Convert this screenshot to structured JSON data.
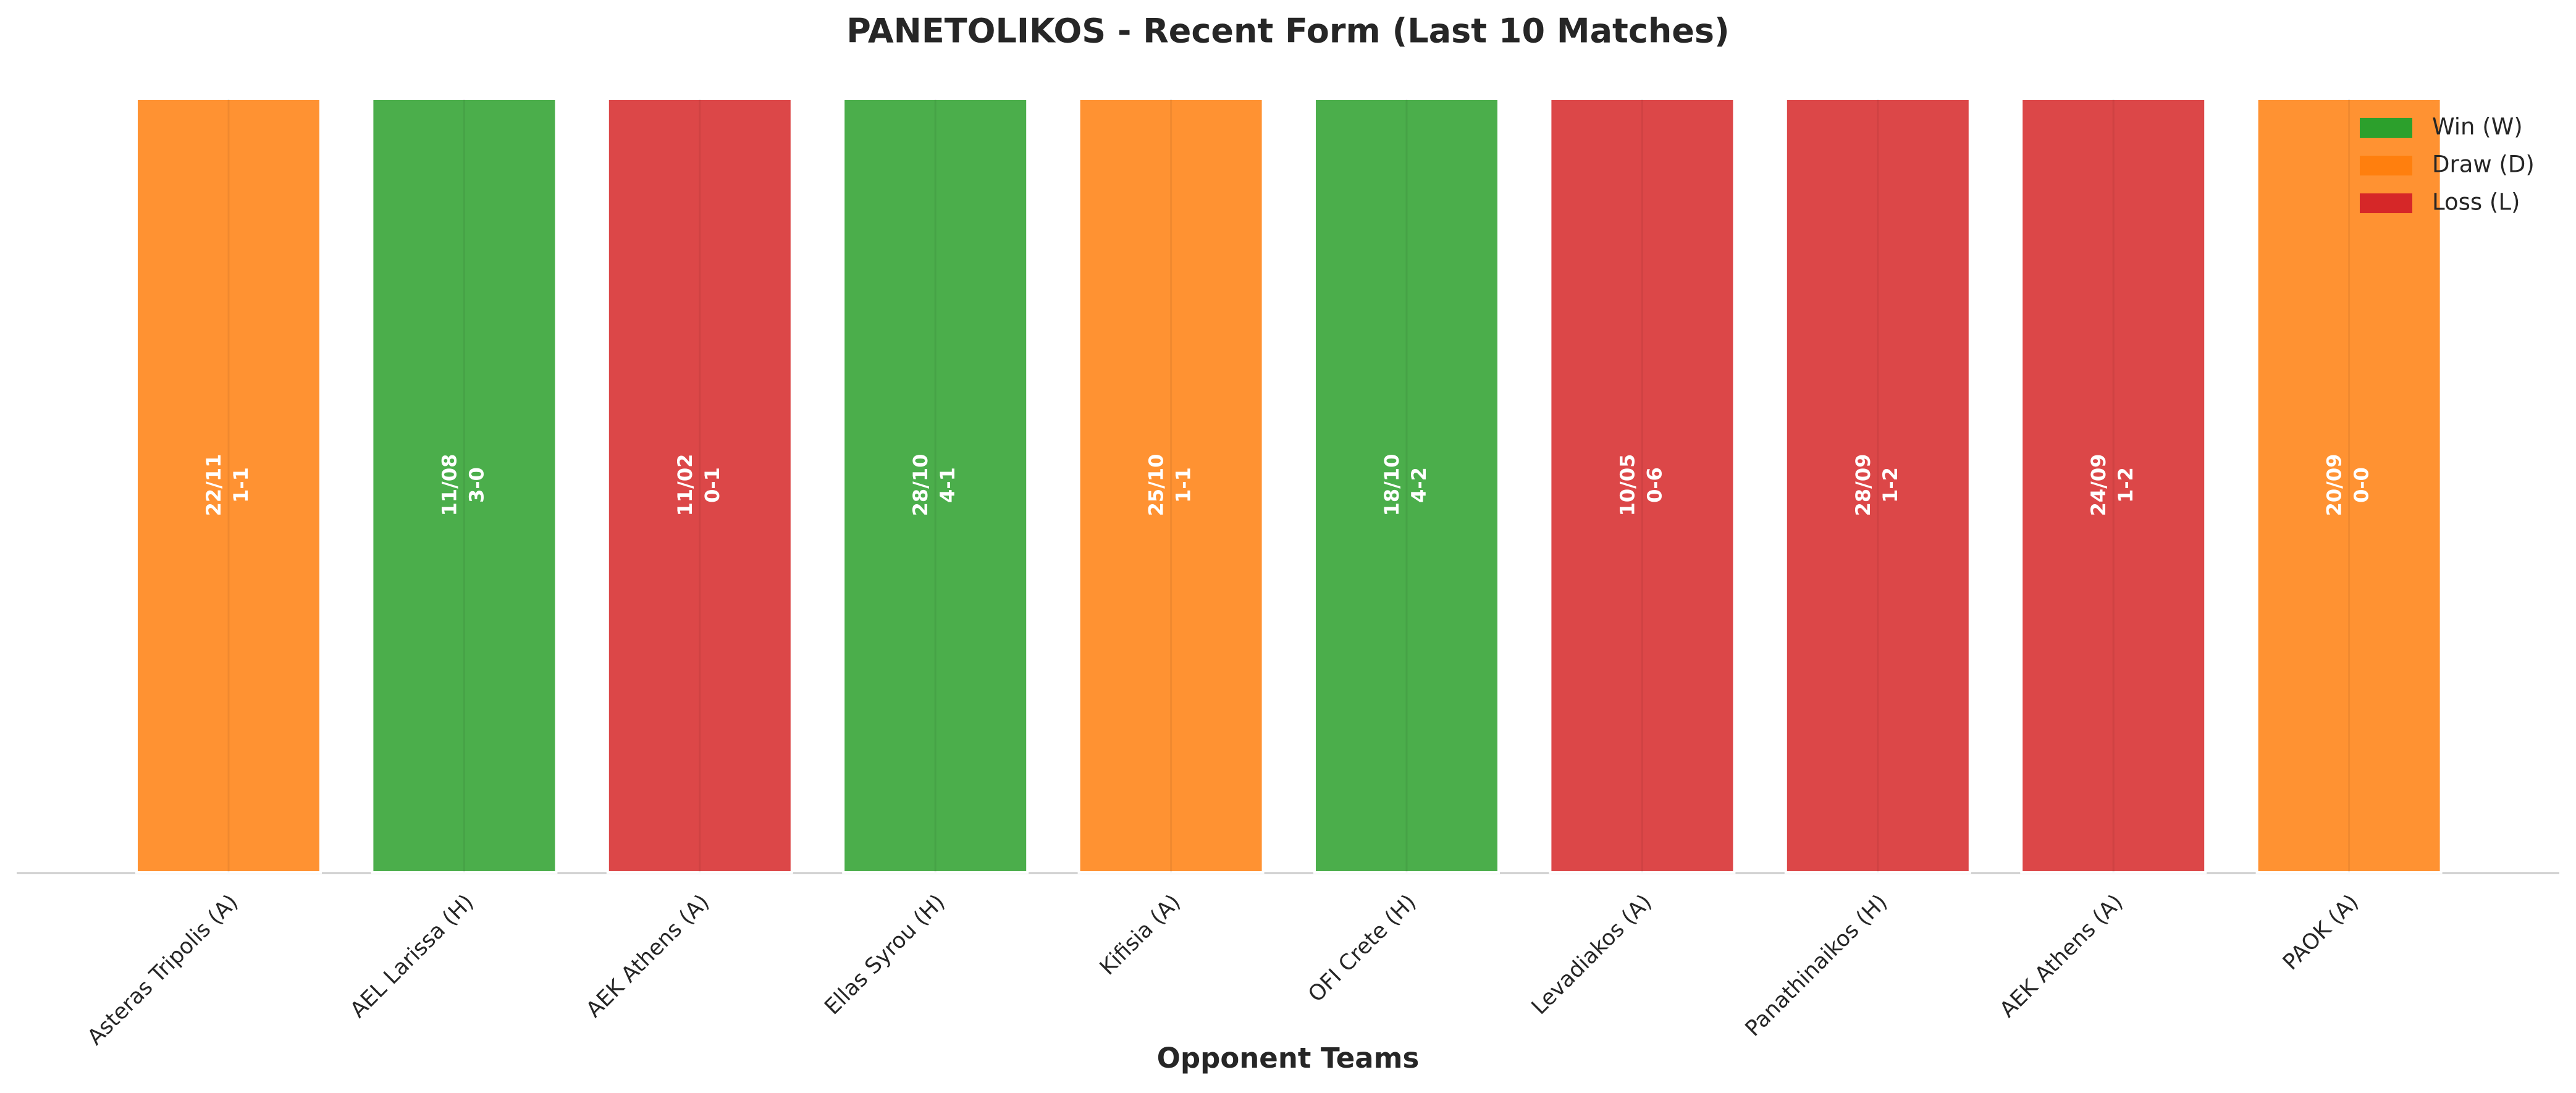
{
  "chart_data": {
    "type": "bar",
    "title": "PANETOLIKOS - Recent Form (Last 10 Matches)",
    "x_label": "Opponent Teams",
    "categories": [
      "Asteras Tripolis (A)",
      "AEL Larissa (H)",
      "AEK Athens (A)",
      "Ellas Syrou (H)",
      "Kifisia (A)",
      "OFI Crete (H)",
      "Levadiakos (A)",
      "Panathinaikos (H)",
      "AEK Athens (A)",
      "PAOK (A)"
    ],
    "dates": [
      "22/11",
      "11/08",
      "11/02",
      "28/10",
      "25/10",
      "18/10",
      "10/05",
      "28/09",
      "24/09",
      "20/09"
    ],
    "scores": [
      "1-1",
      "3-0",
      "0-1",
      "4-1",
      "1-1",
      "4-2",
      "0-6",
      "1-2",
      "1-2",
      "0-0"
    ],
    "series": [
      {
        "name": "Win (W)",
        "color": "#2ca02c",
        "values": [
          null,
          1,
          null,
          1,
          null,
          1,
          null,
          null,
          null,
          null
        ]
      },
      {
        "name": "Draw (D)",
        "color": "#ff7f0e",
        "values": [
          1,
          null,
          null,
          null,
          1,
          null,
          null,
          null,
          null,
          1
        ]
      },
      {
        "name": "Loss (L)",
        "color": "#d62728",
        "values": [
          null,
          null,
          1,
          null,
          null,
          null,
          1,
          1,
          1,
          null
        ]
      }
    ],
    "ylim": [
      0,
      1
    ],
    "legend": "upper right"
  }
}
